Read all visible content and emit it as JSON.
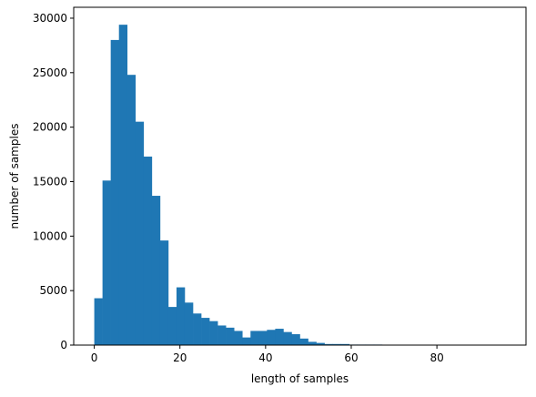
{
  "chart_data": {
    "type": "bar",
    "title": "",
    "xlabel": "length of samples",
    "ylabel": "number of samples",
    "xlim": [
      -4.8,
      100.8
    ],
    "ylim": [
      0,
      31000
    ],
    "xticks": [
      0,
      20,
      40,
      60,
      80
    ],
    "yticks": [
      0,
      5000,
      10000,
      15000,
      20000,
      25000,
      30000
    ],
    "bin_width": 1.92,
    "bin_start": 0,
    "bar_color": "#1f77b4",
    "grid": false,
    "legend": "none",
    "values": [
      4300,
      15100,
      28000,
      29400,
      24800,
      20500,
      17300,
      13700,
      9600,
      3500,
      5300,
      3900,
      2900,
      2500,
      2200,
      1800,
      1600,
      1300,
      700,
      1300,
      1300,
      1400,
      1500,
      1200,
      1000,
      600,
      300,
      200,
      100,
      100,
      100,
      50,
      50,
      50,
      50,
      20,
      20,
      20,
      20,
      20,
      20,
      10,
      10,
      10,
      10,
      10,
      5,
      5,
      5,
      5
    ]
  }
}
